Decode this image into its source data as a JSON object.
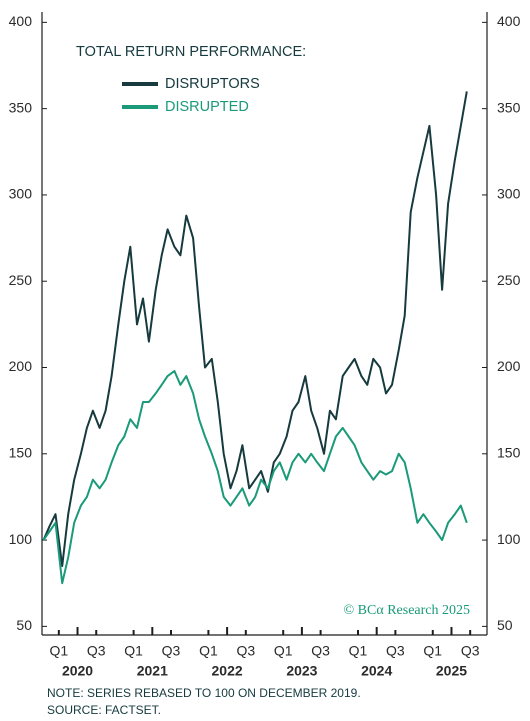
{
  "chart_data": {
    "type": "line",
    "title": "TOTAL RETURN PERFORMANCE:",
    "watermark": "© BCα Research 2025",
    "notes": [
      "NOTE: SERIES REBASED TO 100 ON DECEMBER 2019.",
      "SOURCE: FACTSET."
    ],
    "x": [
      2019.92,
      2020.0,
      2020.08,
      2020.17,
      2020.25,
      2020.33,
      2020.42,
      2020.5,
      2020.58,
      2020.67,
      2020.75,
      2020.83,
      2020.92,
      2021.0,
      2021.08,
      2021.17,
      2021.25,
      2021.33,
      2021.42,
      2021.5,
      2021.58,
      2021.67,
      2021.75,
      2021.83,
      2021.92,
      2022.0,
      2022.08,
      2022.17,
      2022.25,
      2022.33,
      2022.42,
      2022.5,
      2022.58,
      2022.67,
      2022.75,
      2022.83,
      2022.92,
      2023.0,
      2023.08,
      2023.17,
      2023.25,
      2023.33,
      2023.42,
      2023.5,
      2023.58,
      2023.67,
      2023.75,
      2023.83,
      2023.92,
      2024.0,
      2024.08,
      2024.17,
      2024.25,
      2024.33,
      2024.42,
      2024.5,
      2024.58,
      2024.67,
      2024.75,
      2024.83,
      2024.92,
      2025.0,
      2025.08,
      2025.17,
      2025.25,
      2025.33,
      2025.42,
      2025.5,
      2025.58
    ],
    "series": [
      {
        "name": "DISRUPTORS",
        "color": "#163a3e",
        "values": [
          100,
          108,
          115,
          85,
          115,
          135,
          150,
          165,
          175,
          165,
          175,
          195,
          225,
          250,
          270,
          225,
          240,
          215,
          245,
          265,
          280,
          270,
          265,
          288,
          275,
          235,
          200,
          205,
          180,
          150,
          130,
          140,
          155,
          130,
          135,
          140,
          128,
          145,
          150,
          160,
          175,
          180,
          195,
          175,
          165,
          150,
          175,
          170,
          195,
          200,
          205,
          195,
          190,
          205,
          200,
          185,
          190,
          210,
          230,
          290,
          310,
          325,
          340,
          300,
          245,
          295,
          320,
          340,
          360
        ]
      },
      {
        "name": "DISRUPTED",
        "color": "#1a9a78",
        "values": [
          100,
          105,
          110,
          75,
          90,
          110,
          120,
          125,
          135,
          130,
          135,
          145,
          155,
          160,
          170,
          165,
          180,
          180,
          185,
          190,
          195,
          198,
          190,
          195,
          185,
          170,
          160,
          150,
          140,
          125,
          120,
          125,
          130,
          120,
          125,
          135,
          130,
          140,
          145,
          135,
          145,
          150,
          145,
          150,
          145,
          140,
          150,
          160,
          165,
          160,
          155,
          145,
          140,
          135,
          140,
          138,
          140,
          150,
          145,
          130,
          110,
          115,
          110,
          105,
          100,
          110,
          115,
          120,
          110
        ]
      }
    ],
    "xlim": [
      2019.9,
      2025.85
    ],
    "xticks": [
      {
        "value": 2020.125,
        "label": "Q1"
      },
      {
        "value": 2020.625,
        "label": "Q3"
      },
      {
        "value": 2021.125,
        "label": "Q1"
      },
      {
        "value": 2021.625,
        "label": "Q3"
      },
      {
        "value": 2022.125,
        "label": "Q1"
      },
      {
        "value": 2022.625,
        "label": "Q3"
      },
      {
        "value": 2023.125,
        "label": "Q1"
      },
      {
        "value": 2023.625,
        "label": "Q3"
      },
      {
        "value": 2024.125,
        "label": "Q1"
      },
      {
        "value": 2024.625,
        "label": "Q3"
      },
      {
        "value": 2025.125,
        "label": "Q1"
      },
      {
        "value": 2025.625,
        "label": "Q3"
      }
    ],
    "year_ticks": [
      {
        "value": 2020.375,
        "label": "2020"
      },
      {
        "value": 2021.375,
        "label": "2021"
      },
      {
        "value": 2022.375,
        "label": "2022"
      },
      {
        "value": 2023.375,
        "label": "2023"
      },
      {
        "value": 2024.375,
        "label": "2024"
      },
      {
        "value": 2025.375,
        "label": "2025"
      }
    ],
    "ylim": [
      45,
      406
    ],
    "yticks": [
      50,
      100,
      150,
      200,
      250,
      300,
      350,
      400
    ],
    "y2lim": [
      45,
      406
    ],
    "y2ticks": [
      50,
      100,
      150,
      200,
      250,
      300,
      350,
      400
    ],
    "grid": false
  }
}
